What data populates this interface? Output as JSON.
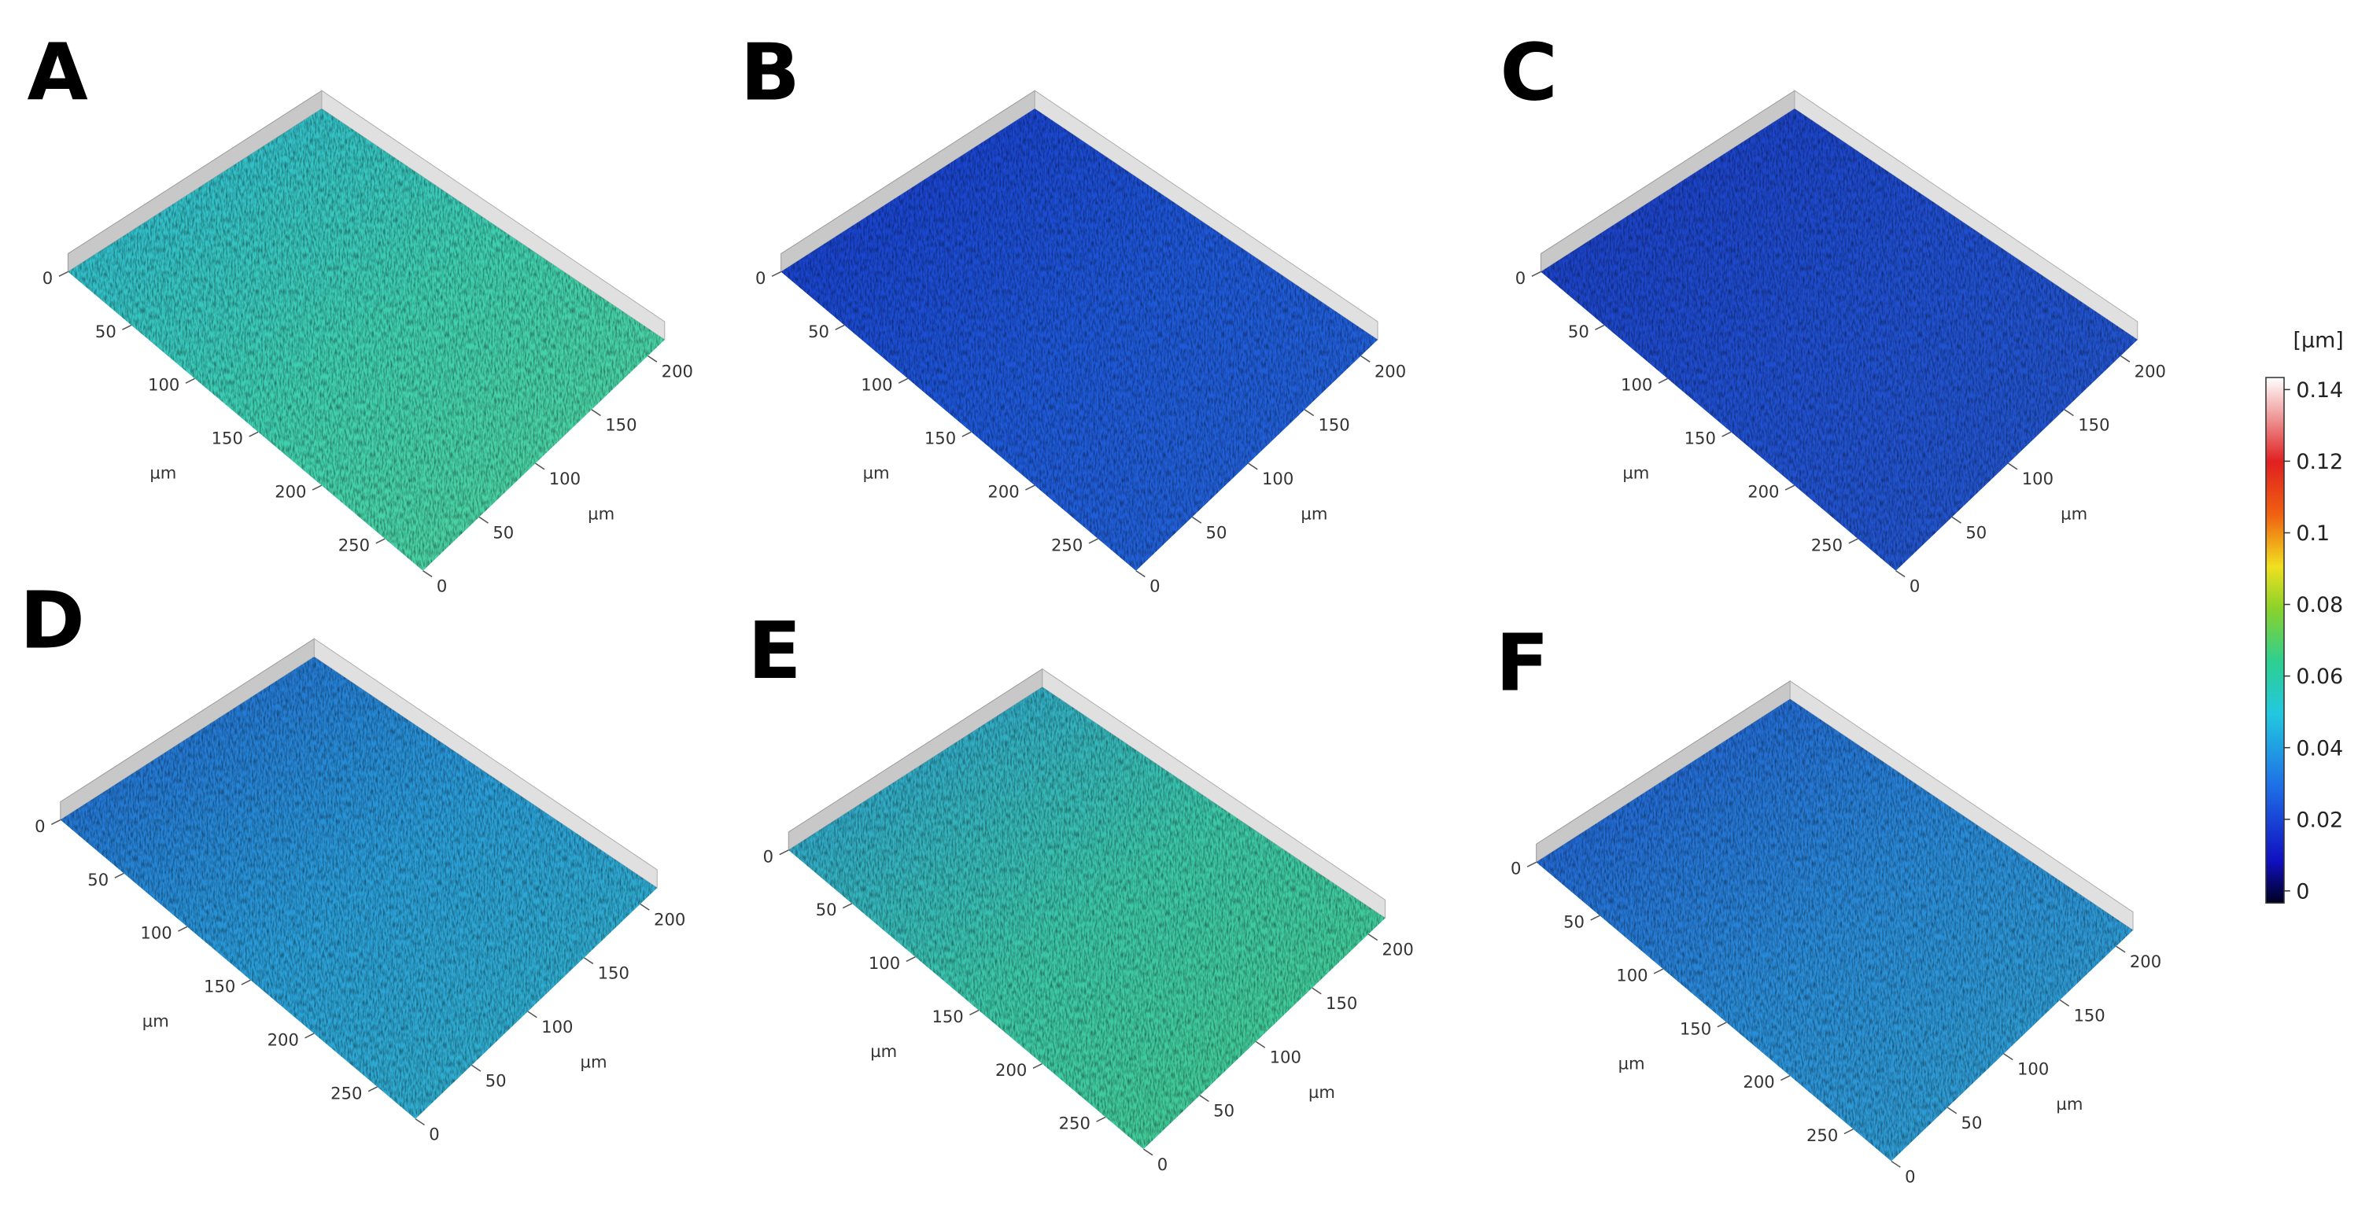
{
  "panels": [
    {
      "label": "A",
      "left_ticks": [
        0,
        50,
        100,
        150,
        200,
        250
      ],
      "left_unit": "µm",
      "right_ticks": [
        0,
        50,
        100,
        150,
        200
      ],
      "right_unit": "µm"
    },
    {
      "label": "B",
      "left_ticks": [
        0,
        50,
        100,
        150,
        200,
        250
      ],
      "left_unit": "µm",
      "right_ticks": [
        0,
        50,
        100,
        150,
        200
      ],
      "right_unit": "µm"
    },
    {
      "label": "C",
      "left_ticks": [
        0,
        50,
        100,
        150,
        200,
        250
      ],
      "left_unit": "µm",
      "right_ticks": [
        0,
        50,
        100,
        150,
        200
      ],
      "right_unit": "µm"
    },
    {
      "label": "D",
      "left_ticks": [
        0,
        50,
        100,
        150,
        200,
        250
      ],
      "left_unit": "µm",
      "right_ticks": [
        0,
        50,
        100,
        150,
        200
      ],
      "right_unit": "µm"
    },
    {
      "label": "E",
      "left_ticks": [
        0,
        50,
        100,
        150,
        200,
        250
      ],
      "left_unit": "µm",
      "right_ticks": [
        0,
        50,
        100,
        150,
        200
      ],
      "right_unit": "µm"
    },
    {
      "label": "F",
      "left_ticks": [
        0,
        50,
        100,
        150,
        200,
        250
      ],
      "left_unit": "µm",
      "right_ticks": [
        0,
        50,
        100,
        150,
        200
      ],
      "right_unit": "µm"
    }
  ],
  "colorbar": {
    "unit": "[µm]",
    "limits": [
      0,
      0.14
    ],
    "ticks": [
      0,
      0.02,
      0.04,
      0.06,
      0.08,
      0.1,
      0.12,
      0.14
    ]
  }
}
